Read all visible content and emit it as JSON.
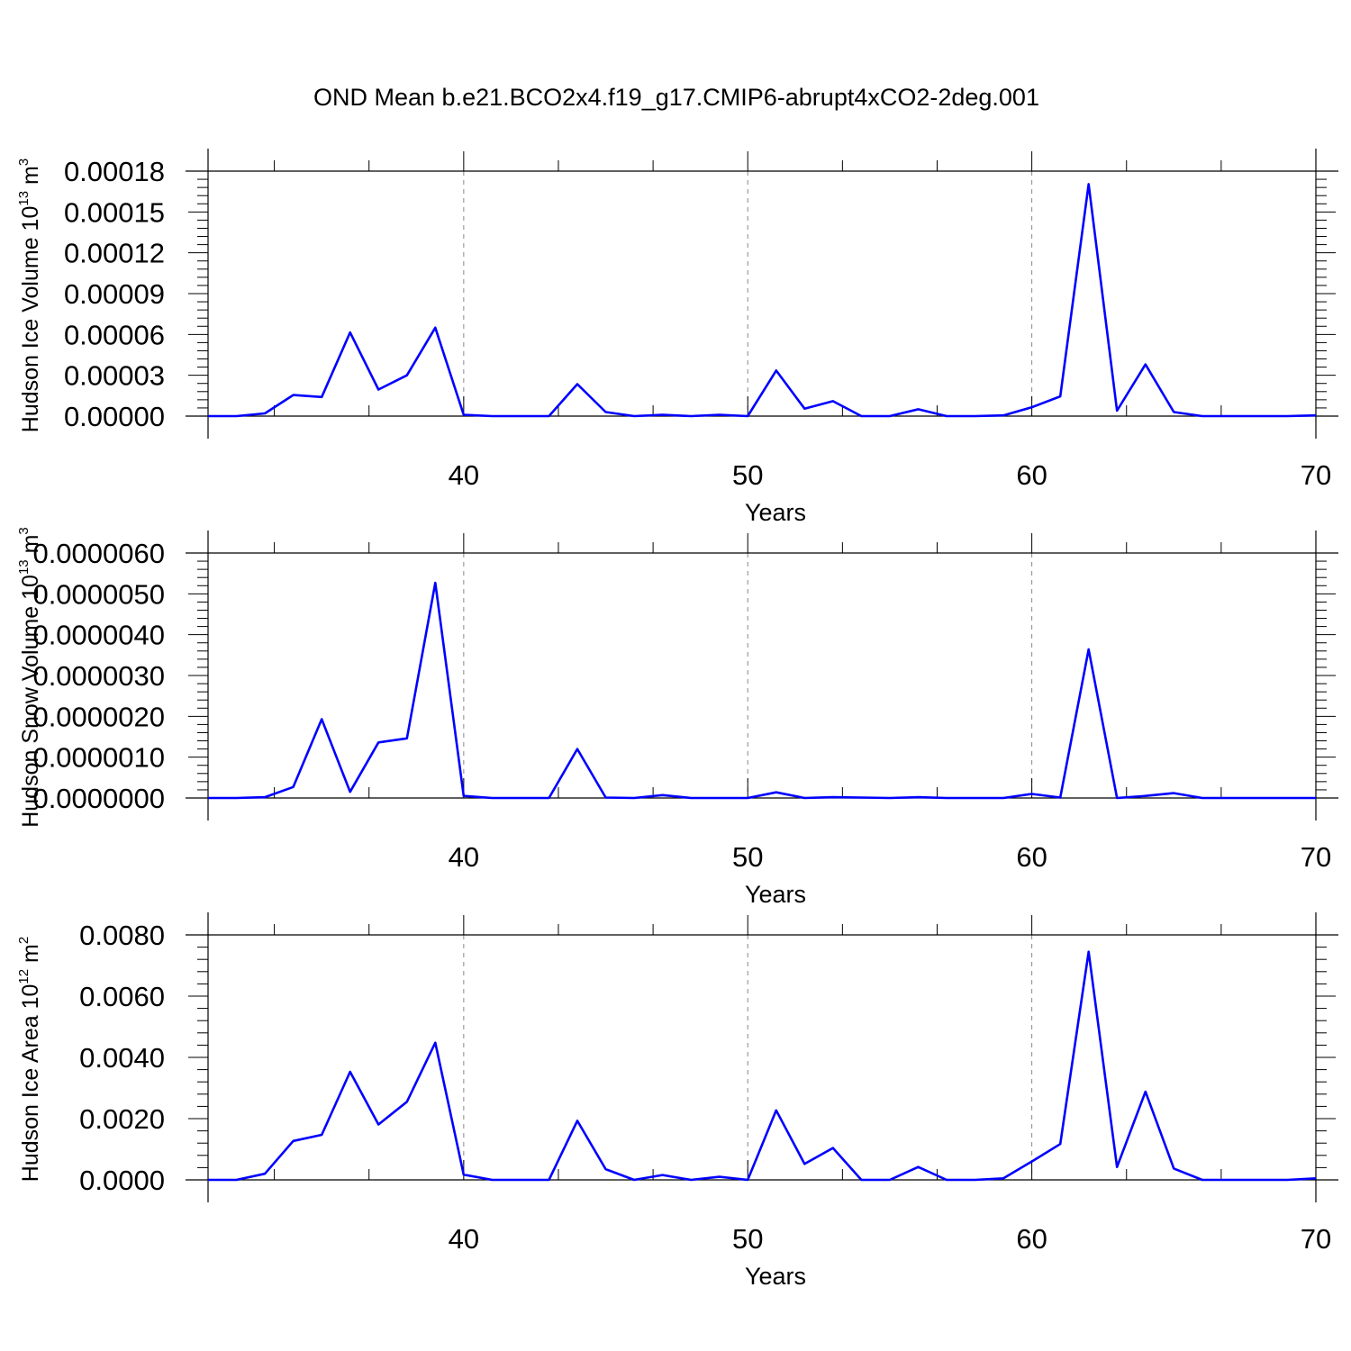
{
  "title": "OND Mean b.e21.BCO2x4.f19_g17.CMIP6-abrupt4xCO2-2deg.001",
  "chart_data": [
    {
      "type": "line",
      "ylabel": {
        "base": "Hudson Ice Volume 10",
        "exponent": "13",
        "unit": " m",
        "unit_exponent": "3"
      },
      "xlabel": "Years",
      "xlim": [
        31,
        70
      ],
      "ylim": [
        0,
        0.00018
      ],
      "xticks": [
        40,
        50,
        60,
        70
      ],
      "xtick_labels": [
        "40",
        "50",
        "60",
        "70"
      ],
      "yticks": [
        0,
        3e-05,
        6e-05,
        9e-05,
        0.00012,
        0.00015,
        0.00018
      ],
      "ytick_labels": [
        "0.00000",
        "0.00003",
        "0.00006",
        "0.00009",
        "0.00012",
        "0.00015",
        "0.00018"
      ],
      "grid": "dashed vertical at major x ticks",
      "line_color": "#0000ff",
      "x": [
        31,
        32,
        33,
        34,
        35,
        36,
        37,
        38,
        39,
        40,
        41,
        42,
        43,
        44,
        45,
        46,
        47,
        48,
        49,
        50,
        51,
        52,
        53,
        54,
        55,
        56,
        57,
        58,
        59,
        60,
        61,
        62,
        63,
        64,
        65,
        66,
        67,
        68,
        69,
        70
      ],
      "y": [
        0,
        0,
        2e-06,
        1.55e-05,
        1.4e-05,
        6.15e-05,
        1.95e-05,
        3e-05,
        6.5e-05,
        1e-06,
        0,
        0,
        0,
        2.35e-05,
        3e-06,
        0,
        1e-06,
        0,
        1e-06,
        0,
        3.35e-05,
        5.5e-06,
        1.1e-05,
        0,
        0,
        5e-06,
        0,
        0,
        5e-07,
        6.5e-06,
        1.45e-05,
        0.0001705,
        4e-06,
        3.8e-05,
        3e-06,
        0,
        0,
        0,
        0,
        5e-07
      ]
    },
    {
      "type": "line",
      "ylabel": {
        "base": "Hudson Snow Volume 10",
        "exponent": "13",
        "unit": " m",
        "unit_exponent": "3"
      },
      "xlabel": "Years",
      "xlim": [
        31,
        70
      ],
      "ylim": [
        0,
        6e-06
      ],
      "xticks": [
        40,
        50,
        60,
        70
      ],
      "xtick_labels": [
        "40",
        "50",
        "60",
        "70"
      ],
      "yticks": [
        0,
        1e-06,
        2e-06,
        3e-06,
        4e-06,
        5e-06,
        6e-06
      ],
      "ytick_labels": [
        "0.0000000",
        "0.0000010",
        "0.0000020",
        "0.0000030",
        "0.0000040",
        "0.0000050",
        "0.0000060"
      ],
      "grid": "dashed vertical at major x ticks",
      "line_color": "#0000ff",
      "x": [
        31,
        32,
        33,
        34,
        35,
        36,
        37,
        38,
        39,
        40,
        41,
        42,
        43,
        44,
        45,
        46,
        47,
        48,
        49,
        50,
        51,
        52,
        53,
        54,
        55,
        56,
        57,
        58,
        59,
        60,
        61,
        62,
        63,
        64,
        65,
        66,
        67,
        68,
        69,
        70
      ],
      "y": [
        0,
        0,
        2e-08,
        2.7e-07,
        1.93e-06,
        1.5e-07,
        1.36e-06,
        1.46e-06,
        5.27e-06,
        5e-08,
        0,
        0,
        0,
        1.2e-06,
        1e-08,
        0,
        7e-08,
        0,
        0,
        0,
        1.4e-07,
        0,
        2e-08,
        1e-08,
        0,
        2e-08,
        0,
        0,
        0,
        1e-07,
        1e-08,
        3.64e-06,
        0,
        5e-08,
        1.2e-07,
        0,
        0,
        0,
        0,
        0
      ]
    },
    {
      "type": "line",
      "ylabel": {
        "base": "Hudson Ice Area 10",
        "exponent": "12",
        "unit": " m",
        "unit_exponent": "2"
      },
      "xlabel": "Years",
      "xlim": [
        31,
        70
      ],
      "ylim": [
        0,
        0.008
      ],
      "xticks": [
        40,
        50,
        60,
        70
      ],
      "xtick_labels": [
        "40",
        "50",
        "60",
        "70"
      ],
      "yticks": [
        0,
        0.002,
        0.004,
        0.006,
        0.008
      ],
      "ytick_labels": [
        "0.0000",
        "0.0020",
        "0.0040",
        "0.0060",
        "0.0080"
      ],
      "grid": "dashed vertical at major x ticks",
      "line_color": "#0000ff",
      "x": [
        31,
        32,
        33,
        34,
        35,
        36,
        37,
        38,
        39,
        40,
        41,
        42,
        43,
        44,
        45,
        46,
        47,
        48,
        49,
        50,
        51,
        52,
        53,
        54,
        55,
        56,
        57,
        58,
        59,
        60,
        61,
        62,
        63,
        64,
        65,
        66,
        67,
        68,
        69,
        70
      ],
      "y": [
        0,
        0,
        0.0002,
        0.00127,
        0.00147,
        0.00353,
        0.00181,
        0.00255,
        0.00448,
        0.00017,
        0,
        0,
        0,
        0.00193,
        0.00035,
        0,
        0.00016,
        0,
        0.0001,
        0,
        0.00227,
        0.00052,
        0.00104,
        0,
        0,
        0.00042,
        0,
        0,
        5e-05,
        0.0006,
        0.00117,
        0.00745,
        0.00042,
        0.00288,
        0.00037,
        0,
        0,
        0,
        0,
        5e-05
      ]
    }
  ]
}
